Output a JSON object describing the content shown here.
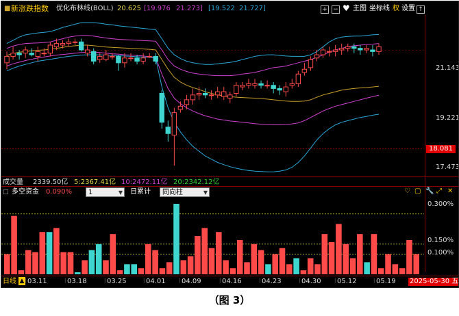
{
  "header": {
    "title": "新涨跌指数",
    "indicator": "优化布林线(BOLL)",
    "v1": "20.625",
    "v2": "[19.976",
    "v3": "21.273]",
    "v4": "[19.522",
    "v5": "21.727]",
    "plus": "+",
    "minus": "−",
    "heart": "♥",
    "menu_main": "主图",
    "menu_coord": "坐标线",
    "menu_rights": "权",
    "menu_settings": "设置",
    "up_arrow": "↑"
  },
  "price_axis": {
    "p1": "21.143",
    "p2": "19.221",
    "p3": "18.081",
    "p4": "17.473"
  },
  "volume_row": {
    "label": "成交量",
    "value": "2339.50亿",
    "ma5": "5:2367.41亿",
    "ma10": "10:2472.11亿",
    "ma20": "20:2342.12亿"
  },
  "sub_header": {
    "title": "多空资金",
    "value": "0.090%",
    "select1_value": "1",
    "cumulative_label": "日累计",
    "select2_value": "同向柱"
  },
  "sub_axis": {
    "a1": "0.300%",
    "a2": "0.150%",
    "a3": "0.100%"
  },
  "date_axis": {
    "period": "日线",
    "warn": "▲",
    "dates": [
      "03.11",
      "03.18",
      "03.25",
      "04.01",
      "04.09",
      "04.16",
      "04.23",
      "04.30",
      "05.12",
      "05.19"
    ],
    "current": "2025-05-30 五"
  },
  "colors": {
    "up": "#ff4a4a",
    "down": "#3fd6d0",
    "boll_outer": "#29a8d8",
    "boll_mid": "#d040d0",
    "boll_center": "#c8a02a"
  },
  "caption": "（图 3）",
  "chart_data": {
    "type": "candlestick+bar",
    "candles": [
      {
        "o": 20.75,
        "c": 20.95,
        "h": 21.1,
        "l": 20.55
      },
      {
        "o": 20.95,
        "c": 21.05,
        "h": 21.25,
        "l": 20.85
      },
      {
        "o": 21.05,
        "c": 21.0,
        "h": 21.15,
        "l": 20.85
      },
      {
        "o": 21.05,
        "c": 21.15,
        "h": 21.25,
        "l": 20.9
      },
      {
        "o": 21.05,
        "c": 21.0,
        "h": 21.2,
        "l": 20.95
      },
      {
        "o": 20.95,
        "c": 21.1,
        "h": 21.25,
        "l": 20.8
      },
      {
        "o": 21.05,
        "c": 21.05,
        "h": 21.2,
        "l": 20.95
      },
      {
        "o": 21.05,
        "c": 21.3,
        "h": 21.4,
        "l": 20.95
      },
      {
        "o": 21.25,
        "c": 21.35,
        "h": 21.5,
        "l": 21.15
      },
      {
        "o": 21.3,
        "c": 21.35,
        "h": 21.45,
        "l": 21.2
      },
      {
        "o": 21.35,
        "c": 21.4,
        "h": 21.5,
        "l": 21.25
      },
      {
        "o": 21.4,
        "c": 21.4,
        "h": 21.5,
        "l": 21.3
      },
      {
        "o": 21.4,
        "c": 21.15,
        "h": 21.5,
        "l": 21.1
      },
      {
        "o": 21.05,
        "c": 21.15,
        "h": 21.3,
        "l": 20.95
      },
      {
        "o": 21.1,
        "c": 20.8,
        "h": 21.2,
        "l": 20.7
      },
      {
        "o": 20.85,
        "c": 20.95,
        "h": 21.05,
        "l": 20.75
      },
      {
        "o": 20.85,
        "c": 21.0,
        "h": 21.15,
        "l": 20.8
      },
      {
        "o": 20.95,
        "c": 20.95,
        "h": 21.05,
        "l": 20.85
      },
      {
        "o": 20.95,
        "c": 20.75,
        "h": 21.0,
        "l": 20.5
      },
      {
        "o": 20.75,
        "c": 20.9,
        "h": 21.05,
        "l": 20.6
      },
      {
        "o": 20.9,
        "c": 20.9,
        "h": 21.05,
        "l": 20.8
      },
      {
        "o": 20.9,
        "c": 20.8,
        "h": 21.0,
        "l": 20.7
      },
      {
        "o": 20.8,
        "c": 20.9,
        "h": 21.05,
        "l": 20.7
      },
      {
        "o": 20.95,
        "c": 20.95,
        "h": 21.05,
        "l": 20.9
      },
      {
        "o": 20.95,
        "c": 20.8,
        "h": 21.05,
        "l": 20.7
      },
      {
        "o": 19.8,
        "c": 18.9,
        "h": 19.9,
        "l": 18.7
      },
      {
        "o": 18.75,
        "c": 18.55,
        "h": 18.95,
        "l": 18.3
      },
      {
        "o": 18.5,
        "c": 19.2,
        "h": 19.35,
        "l": 17.55
      },
      {
        "o": 19.3,
        "c": 19.4,
        "h": 19.55,
        "l": 19.2
      },
      {
        "o": 19.45,
        "c": 19.6,
        "h": 19.75,
        "l": 19.3
      },
      {
        "o": 19.6,
        "c": 19.75,
        "h": 19.95,
        "l": 19.45
      },
      {
        "o": 19.75,
        "c": 19.8,
        "h": 20.0,
        "l": 19.6
      },
      {
        "o": 19.8,
        "c": 19.75,
        "h": 19.95,
        "l": 19.65
      },
      {
        "o": 19.75,
        "c": 19.75,
        "h": 19.9,
        "l": 19.6
      },
      {
        "o": 19.75,
        "c": 19.85,
        "h": 20.0,
        "l": 19.65
      },
      {
        "o": 19.7,
        "c": 19.85,
        "h": 20.0,
        "l": 19.6
      },
      {
        "o": 19.65,
        "c": 19.75,
        "h": 19.85,
        "l": 19.5
      },
      {
        "o": 19.8,
        "c": 20.05,
        "h": 20.15,
        "l": 19.7
      },
      {
        "o": 20.0,
        "c": 20.05,
        "h": 20.15,
        "l": 19.9
      },
      {
        "o": 20.05,
        "c": 20.1,
        "h": 20.25,
        "l": 19.95
      },
      {
        "o": 20.05,
        "c": 20.1,
        "h": 20.25,
        "l": 19.95
      },
      {
        "o": 20.1,
        "c": 20.05,
        "h": 20.2,
        "l": 19.95
      },
      {
        "o": 20.05,
        "c": 20.05,
        "h": 20.2,
        "l": 19.95
      },
      {
        "o": 20.05,
        "c": 19.95,
        "h": 20.15,
        "l": 19.8
      },
      {
        "o": 19.95,
        "c": 19.9,
        "h": 20.05,
        "l": 19.75
      },
      {
        "o": 19.85,
        "c": 20.0,
        "h": 20.15,
        "l": 19.7
      },
      {
        "o": 20.05,
        "c": 20.1,
        "h": 20.25,
        "l": 19.95
      },
      {
        "o": 20.1,
        "c": 20.4,
        "h": 20.5,
        "l": 20.0
      },
      {
        "o": 20.45,
        "c": 20.55,
        "h": 20.75,
        "l": 20.35
      },
      {
        "o": 20.6,
        "c": 20.85,
        "h": 20.95,
        "l": 20.5
      },
      {
        "o": 20.9,
        "c": 21.0,
        "h": 21.15,
        "l": 20.8
      },
      {
        "o": 21.0,
        "c": 21.15,
        "h": 21.25,
        "l": 20.9
      },
      {
        "o": 21.1,
        "c": 21.1,
        "h": 21.25,
        "l": 20.95
      },
      {
        "o": 21.1,
        "c": 21.15,
        "h": 21.3,
        "l": 20.95
      },
      {
        "o": 21.15,
        "c": 21.2,
        "h": 21.35,
        "l": 21.0
      },
      {
        "o": 21.2,
        "c": 21.25,
        "h": 21.35,
        "l": 21.1
      },
      {
        "o": 21.25,
        "c": 21.2,
        "h": 21.35,
        "l": 21.05
      },
      {
        "o": 21.2,
        "c": 21.15,
        "h": 21.3,
        "l": 21.0
      },
      {
        "o": 21.15,
        "c": 21.2,
        "h": 21.3,
        "l": 21.05
      },
      {
        "o": 21.15,
        "c": 21.1,
        "h": 21.3,
        "l": 20.95
      },
      {
        "o": 21.1,
        "c": 21.25,
        "h": 21.35,
        "l": 21.0
      }
    ],
    "boll_upper": [
      21.35,
      21.45,
      21.55,
      21.62,
      21.65,
      21.68,
      21.7,
      21.72,
      21.78,
      21.85,
      21.9,
      21.95,
      22.0,
      22.0,
      22.0,
      21.98,
      21.95,
      21.93,
      21.9,
      21.88,
      21.86,
      21.84,
      21.82,
      21.8,
      21.78,
      21.5,
      21.2,
      21.0,
      20.88,
      20.8,
      20.75,
      20.72,
      20.7,
      20.7,
      20.72,
      20.74,
      20.76,
      20.8,
      20.85,
      20.9,
      20.95,
      20.98,
      21.0,
      21.0,
      20.98,
      20.96,
      20.95,
      20.95,
      20.95,
      21.0,
      21.1,
      21.25,
      21.4,
      21.5,
      21.55,
      21.57,
      21.58,
      21.58,
      21.6,
      21.62,
      21.63
    ],
    "boll_mid_upper": [
      21.2,
      21.27,
      21.32,
      21.35,
      21.36,
      21.37,
      21.38,
      21.4,
      21.45,
      21.5,
      21.55,
      21.58,
      21.6,
      21.6,
      21.58,
      21.55,
      21.52,
      21.5,
      21.48,
      21.47,
      21.46,
      21.45,
      21.44,
      21.43,
      21.42,
      21.15,
      20.85,
      20.65,
      20.55,
      20.48,
      20.43,
      20.4,
      20.38,
      20.36,
      20.35,
      20.35,
      20.35,
      20.37,
      20.4,
      20.42,
      20.45,
      20.5,
      20.55,
      20.6,
      20.62,
      20.65,
      20.7,
      20.75,
      20.8,
      20.85,
      20.92,
      21.0,
      21.08,
      21.15,
      21.2,
      21.25,
      21.28,
      21.3,
      21.32,
      21.33,
      21.35
    ],
    "boll_center": [
      20.98,
      21.04,
      21.08,
      21.1,
      21.12,
      21.14,
      21.15,
      21.17,
      21.2,
      21.23,
      21.26,
      21.28,
      21.3,
      21.3,
      21.28,
      21.26,
      21.24,
      21.23,
      21.22,
      21.21,
      21.2,
      21.19,
      21.18,
      21.17,
      21.15,
      20.85,
      20.55,
      20.3,
      20.15,
      20.05,
      19.98,
      19.92,
      19.85,
      19.8,
      19.75,
      19.72,
      19.7,
      19.68,
      19.67,
      19.66,
      19.65,
      19.64,
      19.62,
      19.6,
      19.58,
      19.56,
      19.55,
      19.55,
      19.56,
      19.6,
      19.68,
      19.75,
      19.8,
      19.85,
      19.9,
      19.93,
      19.95,
      19.97,
      19.98,
      20.0,
      20.02
    ],
    "boll_mid_lower": [
      20.65,
      20.72,
      20.77,
      20.82,
      20.86,
      20.9,
      20.93,
      20.96,
      20.99,
      21.01,
      21.03,
      21.05,
      21.07,
      21.08,
      21.08,
      21.07,
      21.05,
      21.03,
      21.02,
      21.0,
      20.99,
      20.98,
      20.96,
      20.94,
      20.92,
      20.4,
      19.95,
      19.65,
      19.48,
      19.35,
      19.25,
      19.17,
      19.1,
      19.05,
      19.0,
      18.97,
      18.94,
      18.92,
      18.9,
      18.88,
      18.86,
      18.84,
      18.83,
      18.82,
      18.82,
      18.83,
      18.85,
      18.88,
      18.95,
      19.05,
      19.15,
      19.25,
      19.33,
      19.4,
      19.45,
      19.5,
      19.55,
      19.6,
      19.65,
      19.7,
      19.74
    ],
    "boll_lower": [
      20.5,
      20.58,
      20.65,
      20.7,
      20.75,
      20.8,
      20.83,
      20.86,
      20.89,
      20.92,
      20.95,
      20.97,
      20.99,
      21.0,
      21.0,
      21.0,
      20.99,
      20.98,
      20.97,
      20.96,
      20.95,
      20.94,
      20.93,
      20.92,
      20.9,
      20.0,
      19.35,
      18.9,
      18.6,
      18.35,
      18.15,
      18.0,
      17.85,
      17.75,
      17.65,
      17.58,
      17.52,
      17.47,
      17.43,
      17.4,
      17.38,
      17.37,
      17.36,
      17.36,
      17.38,
      17.42,
      17.5,
      17.65,
      17.85,
      18.1,
      18.35,
      18.55,
      18.7,
      18.82,
      18.9,
      18.95,
      19.0,
      19.05,
      19.08,
      19.12,
      19.15
    ],
    "price_range": [
      17.3,
      22.15
    ],
    "fund_bars": [
      {
        "v": 0.1,
        "up": true
      },
      {
        "v": 0.29,
        "up": true
      },
      {
        "v": 0.02,
        "up": true
      },
      {
        "v": 0.12,
        "up": true
      },
      {
        "v": 0.11,
        "up": true
      },
      {
        "v": 0.21,
        "up": true
      },
      {
        "v": 0.21,
        "up": false
      },
      {
        "v": 0.23,
        "up": true
      },
      {
        "v": 0.11,
        "up": true
      },
      {
        "v": 0.11,
        "up": true
      },
      {
        "v": 0.01,
        "up": false
      },
      {
        "v": 0.07,
        "up": true
      },
      {
        "v": 0.12,
        "up": false
      },
      {
        "v": 0.15,
        "up": false
      },
      {
        "v": 0.07,
        "up": true
      },
      {
        "v": 0.2,
        "up": true
      },
      {
        "v": 0.02,
        "up": true
      },
      {
        "v": 0.05,
        "up": false
      },
      {
        "v": 0.05,
        "up": false
      },
      {
        "v": 0.03,
        "up": true
      },
      {
        "v": 0.15,
        "up": true
      },
      {
        "v": 0.12,
        "up": true
      },
      {
        "v": 0.03,
        "up": true
      },
      {
        "v": 0.06,
        "up": true
      },
      {
        "v": 0.35,
        "up": false
      },
      {
        "v": 0.07,
        "up": true
      },
      {
        "v": 0.09,
        "up": true
      },
      {
        "v": 0.19,
        "up": true
      },
      {
        "v": 0.23,
        "up": true
      },
      {
        "v": 0.13,
        "up": true
      },
      {
        "v": 0.21,
        "up": true
      },
      {
        "v": 0.07,
        "up": true
      },
      {
        "v": 0.03,
        "up": true
      },
      {
        "v": 0.17,
        "up": true
      },
      {
        "v": 0.06,
        "up": true
      },
      {
        "v": 0.15,
        "up": true
      },
      {
        "v": 0.12,
        "up": true
      },
      {
        "v": 0.05,
        "up": false
      },
      {
        "v": 0.1,
        "up": true
      },
      {
        "v": 0.13,
        "up": true
      },
      {
        "v": 0.05,
        "up": true
      },
      {
        "v": 0.08,
        "up": false
      },
      {
        "v": 0.02,
        "up": true
      },
      {
        "v": 0.08,
        "up": true
      },
      {
        "v": 0.05,
        "up": true
      },
      {
        "v": 0.2,
        "up": true
      },
      {
        "v": 0.16,
        "up": true
      },
      {
        "v": 0.25,
        "up": true
      },
      {
        "v": 0.15,
        "up": true
      },
      {
        "v": 0.08,
        "up": true
      },
      {
        "v": 0.2,
        "up": true
      },
      {
        "v": 0.06,
        "up": false
      },
      {
        "v": 0.2,
        "up": true
      },
      {
        "v": 0.03,
        "up": true
      },
      {
        "v": 0.1,
        "up": true
      },
      {
        "v": 0.05,
        "up": true
      },
      {
        "v": 0.03,
        "up": true
      },
      {
        "v": 0.17,
        "up": true
      },
      {
        "v": 0.1,
        "up": true
      }
    ],
    "fund_range": [
      0,
      0.35
    ]
  }
}
